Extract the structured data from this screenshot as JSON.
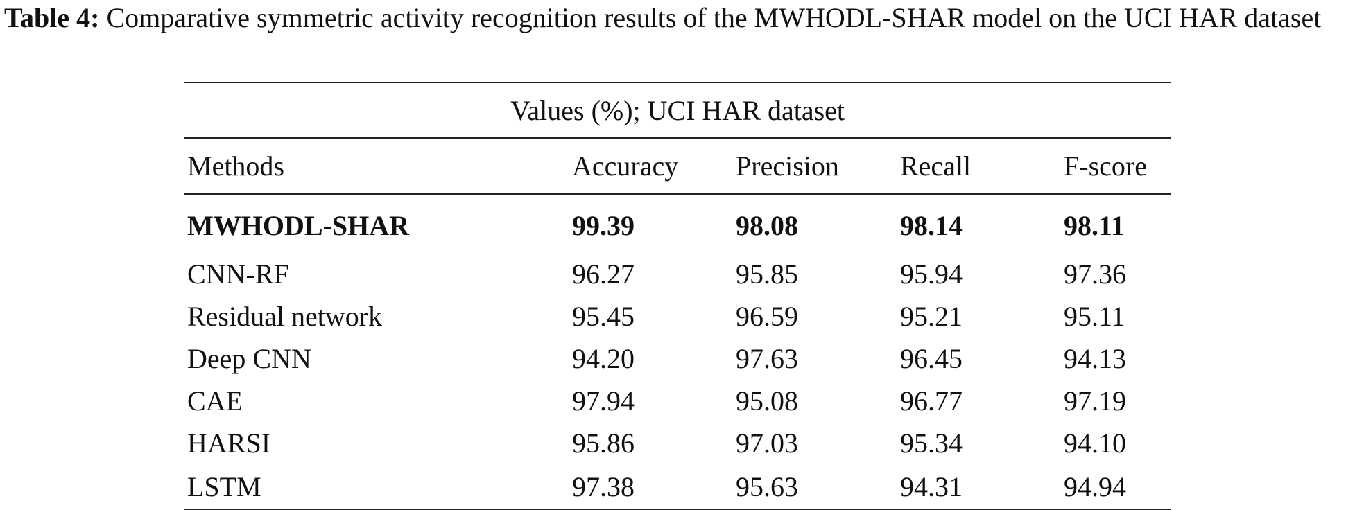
{
  "caption": {
    "label": "Table 4:",
    "text": " Comparative symmetric activity recognition results of the MWHODL-SHAR model on the UCI HAR dataset"
  },
  "table": {
    "group_header": "Values (%); UCI HAR dataset",
    "columns": [
      "Methods",
      "Accuracy",
      "Precision",
      "Recall",
      "F-score"
    ],
    "rows": [
      {
        "method": "MWHODL-SHAR",
        "accuracy": "99.39",
        "precision": "98.08",
        "recall": "98.14",
        "fscore": "98.11",
        "bold": true
      },
      {
        "method": "CNN-RF",
        "accuracy": "96.27",
        "precision": "95.85",
        "recall": "95.94",
        "fscore": "97.36"
      },
      {
        "method": "Residual network",
        "accuracy": "95.45",
        "precision": "96.59",
        "recall": "95.21",
        "fscore": "95.11"
      },
      {
        "method": "Deep CNN",
        "accuracy": "94.20",
        "precision": "97.63",
        "recall": "96.45",
        "fscore": "94.13"
      },
      {
        "method": "CAE",
        "accuracy": "97.94",
        "precision": "95.08",
        "recall": "96.77",
        "fscore": "97.19"
      },
      {
        "method": "HARSI",
        "accuracy": "95.86",
        "precision": "97.03",
        "recall": "95.34",
        "fscore": "94.10"
      },
      {
        "method": "LSTM",
        "accuracy": "97.38",
        "precision": "95.63",
        "recall": "94.31",
        "fscore": "94.94"
      }
    ]
  }
}
